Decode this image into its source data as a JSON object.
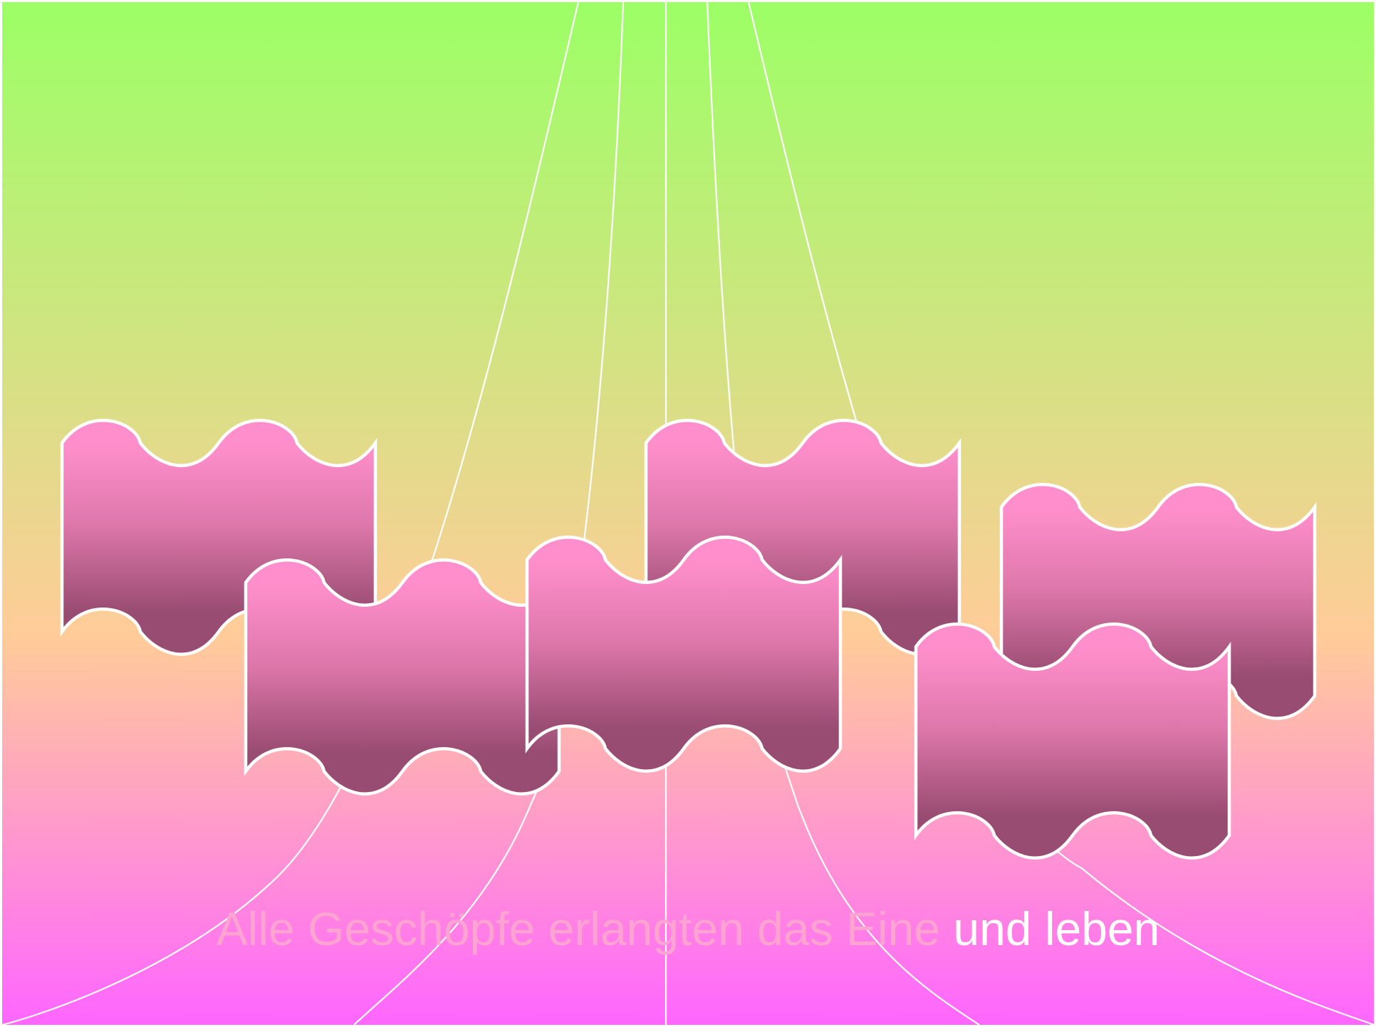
{
  "slide": {
    "background": {
      "top_color": "#9cff66",
      "middle_color": "#ffcc99",
      "bottom_color": "#ff66ff"
    },
    "banner_fill": {
      "top_color": "#ff8fcc",
      "middle_color": "#dd77aa",
      "bottom_color": "#994c72"
    },
    "line_color": "#ffffff",
    "caption": {
      "faded_text": "Alle Geschöpfe erlangten das Eine",
      "bright_text": " und leben",
      "faded_color": "#ffa3d3",
      "bright_color": "#ffffff"
    }
  }
}
